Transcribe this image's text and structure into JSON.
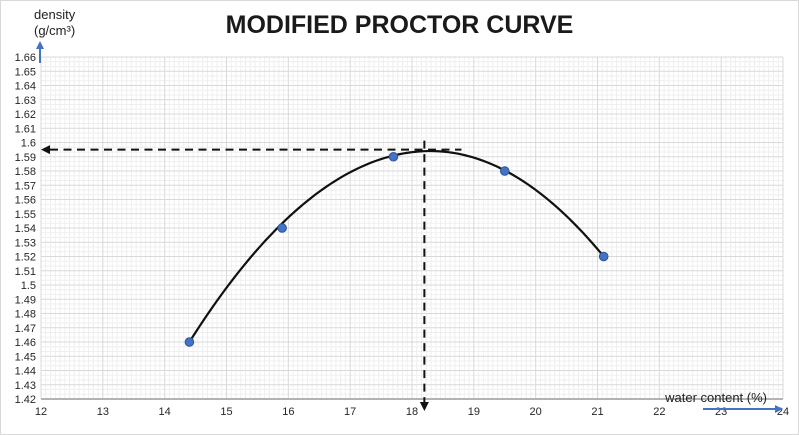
{
  "title": "MODIFIED PROCTOR CURVE",
  "y_axis": {
    "label_line1": "density",
    "label_line2": "(g/cm³)",
    "ticks": [
      "1.66",
      "1.65",
      "1.64",
      "1.63",
      "1.62",
      "1.61",
      "1.6",
      "1.59",
      "1.58",
      "1.57",
      "1.56",
      "1.55",
      "1.54",
      "1.53",
      "1.52",
      "1.51",
      "1.5",
      "1.49",
      "1.48",
      "1.47",
      "1.46",
      "1.45",
      "1.44",
      "1.43",
      "1.42"
    ]
  },
  "x_axis": {
    "label": "water content (%)",
    "ticks": [
      "12",
      "13",
      "14",
      "15",
      "16",
      "17",
      "18",
      "19",
      "20",
      "21",
      "22",
      "23",
      "24"
    ]
  },
  "chart_data": {
    "type": "scatter",
    "title": "MODIFIED PROCTOR CURVE",
    "xlabel": "water content (%)",
    "ylabel": "density (g/cm³)",
    "xlim": [
      12,
      24
    ],
    "ylim": [
      1.42,
      1.66
    ],
    "x_tick_step": 1,
    "y_tick_step": 0.01,
    "grid": {
      "minor": true,
      "minor_x_per_unit": 13,
      "minor_y_per_step": 3
    },
    "points": [
      {
        "x": 14.4,
        "y": 1.46
      },
      {
        "x": 15.9,
        "y": 1.54
      },
      {
        "x": 17.7,
        "y": 1.59
      },
      {
        "x": 19.5,
        "y": 1.58
      },
      {
        "x": 21.1,
        "y": 1.52
      }
    ],
    "trendline": {
      "type": "polynomial-2",
      "vertex": {
        "x": 18.3,
        "y": 1.594
      },
      "start": {
        "x": 14.4,
        "y": 1.46
      },
      "end": {
        "x": 21.1,
        "y": 1.52
      }
    },
    "annotations": {
      "maximum_dry_density": 1.595,
      "optimum_water_content": 18.2,
      "dashed_h_extent_x": 18.8,
      "style": "dashed"
    },
    "colors": {
      "point": "#4472C4",
      "point_stroke": "#2f5597",
      "curve": "#111111",
      "dashed": "#111111",
      "axis_arrow": "#4472C4",
      "grid_minor": "#efefef",
      "grid_major": "#d9d9d9",
      "axis_line": "#b3b3b3",
      "tick_text": "#262626"
    }
  }
}
